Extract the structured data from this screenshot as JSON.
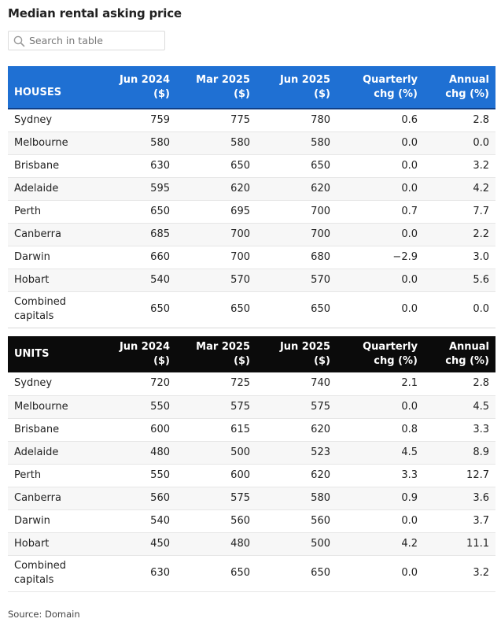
{
  "title": "Median rental asking price",
  "search": {
    "placeholder": "Search in table",
    "icon": "search-icon"
  },
  "colors": {
    "houses_header": "#1f70d3",
    "units_header": "#0b0b0b"
  },
  "columns": [
    {
      "line1": "Jun 2024",
      "line2": "($)"
    },
    {
      "line1": "Mar 2025",
      "line2": "($)"
    },
    {
      "line1": "Jun 2025",
      "line2": "($)"
    },
    {
      "line1": "Quarterly",
      "line2": "chg (%)"
    },
    {
      "line1": "Annual",
      "line2": "chg (%)"
    }
  ],
  "chart_data": {
    "type": "table",
    "sections": [
      {
        "label": "HOUSES",
        "rows": [
          {
            "city": "Sydney",
            "values": [
              "759",
              "775",
              "780",
              "0.6",
              "2.8"
            ]
          },
          {
            "city": "Melbourne",
            "values": [
              "580",
              "580",
              "580",
              "0.0",
              "0.0"
            ]
          },
          {
            "city": "Brisbane",
            "values": [
              "630",
              "650",
              "650",
              "0.0",
              "3.2"
            ]
          },
          {
            "city": "Adelaide",
            "values": [
              "595",
              "620",
              "620",
              "0.0",
              "4.2"
            ]
          },
          {
            "city": "Perth",
            "values": [
              "650",
              "695",
              "700",
              "0.7",
              "7.7"
            ]
          },
          {
            "city": "Canberra",
            "values": [
              "685",
              "700",
              "700",
              "0.0",
              "2.2"
            ]
          },
          {
            "city": "Darwin",
            "values": [
              "660",
              "700",
              "680",
              "−2.9",
              "3.0"
            ]
          },
          {
            "city": "Hobart",
            "values": [
              "540",
              "570",
              "570",
              "0.0",
              "5.6"
            ]
          },
          {
            "city_line1": "Combined",
            "city_line2": "capitals",
            "values": [
              "650",
              "650",
              "650",
              "0.0",
              "0.0"
            ]
          }
        ]
      },
      {
        "label": "UNITS",
        "rows": [
          {
            "city": "Sydney",
            "values": [
              "720",
              "725",
              "740",
              "2.1",
              "2.8"
            ]
          },
          {
            "city": "Melbourne",
            "values": [
              "550",
              "575",
              "575",
              "0.0",
              "4.5"
            ]
          },
          {
            "city": "Brisbane",
            "values": [
              "600",
              "615",
              "620",
              "0.8",
              "3.3"
            ]
          },
          {
            "city": "Adelaide",
            "values": [
              "480",
              "500",
              "523",
              "4.5",
              "8.9"
            ]
          },
          {
            "city": "Perth",
            "values": [
              "550",
              "600",
              "620",
              "3.3",
              "12.7"
            ]
          },
          {
            "city": "Canberra",
            "values": [
              "560",
              "575",
              "580",
              "0.9",
              "3.6"
            ]
          },
          {
            "city": "Darwin",
            "values": [
              "540",
              "560",
              "560",
              "0.0",
              "3.7"
            ]
          },
          {
            "city": "Hobart",
            "values": [
              "450",
              "480",
              "500",
              "4.2",
              "11.1"
            ]
          },
          {
            "city_line1": "Combined",
            "city_line2": "capitals",
            "values": [
              "630",
              "650",
              "650",
              "0.0",
              "3.2"
            ]
          }
        ]
      }
    ]
  },
  "source": "Source: Domain"
}
